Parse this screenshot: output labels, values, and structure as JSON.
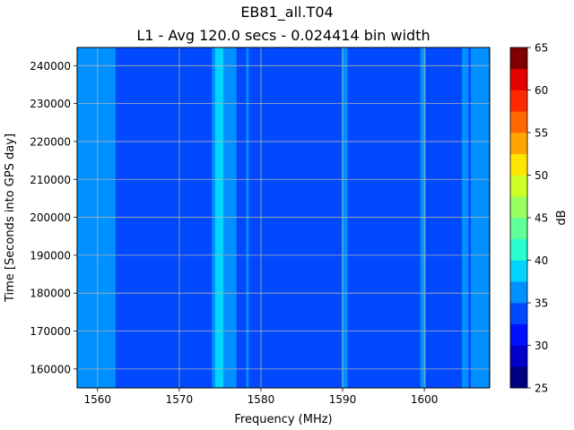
{
  "chart_data": {
    "type": "heatmap",
    "title": "EB81_all.T04",
    "subtitle": "L1 - Avg 120.0 secs - 0.024414 bin width",
    "xlabel": "Frequency (MHz)",
    "ylabel": "Time [Seconds into GPS day]",
    "xlim": [
      1557.5,
      1608.0
    ],
    "ylim": [
      155000,
      244800
    ],
    "x_ticks": [
      1560,
      1570,
      1580,
      1590,
      1600
    ],
    "x_tick_labels": [
      "1560",
      "1570",
      "1580",
      "1590",
      "1600"
    ],
    "y_ticks": [
      160000,
      170000,
      180000,
      190000,
      200000,
      210000,
      220000,
      230000,
      240000
    ],
    "y_tick_labels": [
      "160000",
      "170000",
      "180000",
      "190000",
      "200000",
      "210000",
      "220000",
      "230000",
      "240000"
    ],
    "grid": true,
    "colorbar": {
      "label": "dB",
      "min": 25,
      "max": 65,
      "ticks": [
        25,
        30,
        35,
        40,
        45,
        50,
        55,
        60,
        65
      ],
      "tick_labels": [
        "25",
        "30",
        "35",
        "40",
        "45",
        "50",
        "55",
        "60",
        "65"
      ],
      "levels": [
        {
          "from": 25.0,
          "to": 27.5,
          "color": "#00007f"
        },
        {
          "from": 27.5,
          "to": 30.0,
          "color": "#0000c8"
        },
        {
          "from": 30.0,
          "to": 32.5,
          "color": "#0011ff"
        },
        {
          "from": 32.5,
          "to": 35.0,
          "color": "#0049ff"
        },
        {
          "from": 35.0,
          "to": 37.5,
          "color": "#0090ff"
        },
        {
          "from": 37.5,
          "to": 40.0,
          "color": "#00d4ff"
        },
        {
          "from": 40.0,
          "to": 42.5,
          "color": "#29ffce"
        },
        {
          "from": 42.5,
          "to": 45.0,
          "color": "#60ff97"
        },
        {
          "from": 45.0,
          "to": 47.5,
          "color": "#97ff60"
        },
        {
          "from": 47.5,
          "to": 50.0,
          "color": "#ceff29"
        },
        {
          "from": 50.0,
          "to": 52.5,
          "color": "#ffe600"
        },
        {
          "from": 52.5,
          "to": 55.0,
          "color": "#ffa700"
        },
        {
          "from": 55.0,
          "to": 57.5,
          "color": "#ff6800"
        },
        {
          "from": 57.5,
          "to": 60.0,
          "color": "#ff2900"
        },
        {
          "from": 60.0,
          "to": 62.5,
          "color": "#e40000"
        },
        {
          "from": 62.5,
          "to": 65.0,
          "color": "#7f0000"
        }
      ]
    },
    "background_level_db": 34,
    "bands": [
      {
        "x_from": 1557.5,
        "x_to": 1562.2,
        "level_db": 36
      },
      {
        "x_from": 1574.0,
        "x_to": 1577.0,
        "level_db": 36
      },
      {
        "x_from": 1574.4,
        "x_to": 1575.4,
        "level_db": 38
      },
      {
        "x_from": 1578.2,
        "x_to": 1578.5,
        "level_db": 36
      },
      {
        "x_from": 1589.9,
        "x_to": 1590.6,
        "level_db": 36
      },
      {
        "x_from": 1599.5,
        "x_to": 1600.2,
        "level_db": 36
      },
      {
        "x_from": 1604.6,
        "x_to": 1605.4,
        "level_db": 36
      },
      {
        "x_from": 1605.7,
        "x_to": 1607.9,
        "level_db": 36
      }
    ]
  }
}
